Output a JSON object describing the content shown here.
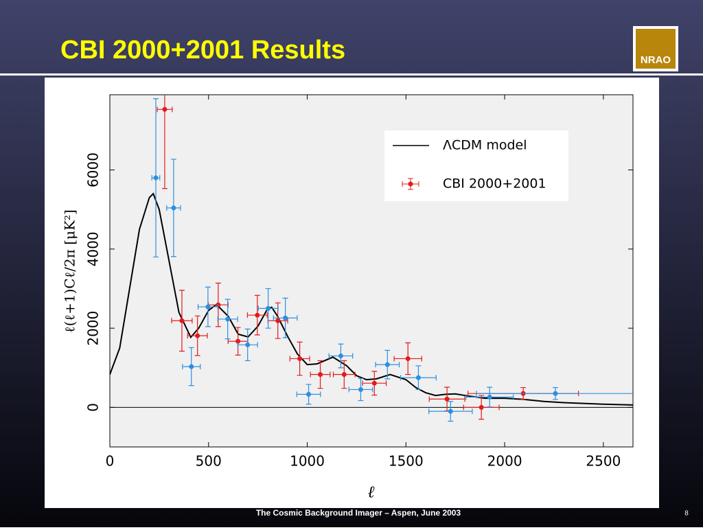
{
  "header": {
    "title": "CBI 2000+2001 Results",
    "logo": "NRAO"
  },
  "chart_data": {
    "type": "scatter",
    "xlabel": "ℓ",
    "ylabel": "ℓ(ℓ+1)Cℓ/2π [μK²]",
    "xlim": [
      0,
      2650
    ],
    "ylim": [
      -1000,
      7900
    ],
    "xticks": [
      0,
      500,
      1000,
      1500,
      2000,
      2500
    ],
    "yticks": [
      0,
      2000,
      4000,
      6000
    ],
    "legend": "upper right",
    "series": [
      {
        "name": "ΛCDM model",
        "color": "#000000",
        "style": "line",
        "x": [
          0,
          50,
          100,
          150,
          200,
          220,
          250,
          300,
          350,
          410,
          450,
          500,
          540,
          600,
          650,
          700,
          750,
          800,
          820,
          850,
          900,
          950,
          1000,
          1050,
          1130,
          1200,
          1250,
          1300,
          1350,
          1420,
          1500,
          1550,
          1600,
          1650,
          1700,
          1750,
          1800,
          1900,
          2000,
          2100,
          2200,
          2300,
          2400,
          2500,
          2650
        ],
        "values": [
          830,
          1500,
          3000,
          4500,
          5300,
          5400,
          5000,
          3700,
          2400,
          1770,
          2000,
          2450,
          2600,
          2300,
          1850,
          1780,
          2050,
          2500,
          2530,
          2300,
          1800,
          1350,
          1080,
          1100,
          1270,
          1050,
          800,
          700,
          720,
          830,
          700,
          500,
          370,
          300,
          330,
          340,
          300,
          230,
          230,
          200,
          150,
          120,
          100,
          80,
          60
        ]
      },
      {
        "name": "CBI 2000+2001",
        "color": "#e31a1c",
        "style": "errorbar",
        "x": [
          278,
          365,
          444,
          549,
          649,
          747,
          851,
          962,
          1066,
          1187,
          1340,
          1510,
          1708,
          1882,
          2094
        ],
        "values": [
          7530,
          2190,
          1810,
          2590,
          1670,
          2330,
          2190,
          1230,
          830,
          830,
          610,
          1230,
          210,
          0,
          350
        ],
        "xerr": [
          38,
          52,
          50,
          50,
          50,
          50,
          50,
          50,
          50,
          55,
          60,
          70,
          90,
          90,
          280
        ],
        "yerr": [
          2000,
          770,
          500,
          550,
          350,
          500,
          450,
          420,
          350,
          350,
          300,
          400,
          300,
          300,
          150
        ]
      },
      {
        "color": "#2b8fe0",
        "style": "errorbar",
        "x": [
          233,
          323,
          413,
          497,
          597,
          698,
          802,
          889,
          1007,
          1170,
          1271,
          1406,
          1563,
          1726,
          1924,
          2257
        ],
        "values": [
          5800,
          5040,
          1030,
          2540,
          2230,
          1580,
          2500,
          2260,
          330,
          1300,
          450,
          1080,
          750,
          -100,
          260,
          350
        ],
        "xerr": [
          20,
          35,
          45,
          50,
          50,
          50,
          50,
          60,
          60,
          60,
          60,
          60,
          90,
          110,
          120,
          400
        ],
        "yerr": [
          2000,
          1230,
          480,
          500,
          500,
          400,
          500,
          500,
          250,
          300,
          280,
          360,
          300,
          250,
          250,
          150
        ]
      }
    ]
  },
  "footer": {
    "text": "The Cosmic Background Imager – Aspen, June 2003",
    "page": "8"
  }
}
